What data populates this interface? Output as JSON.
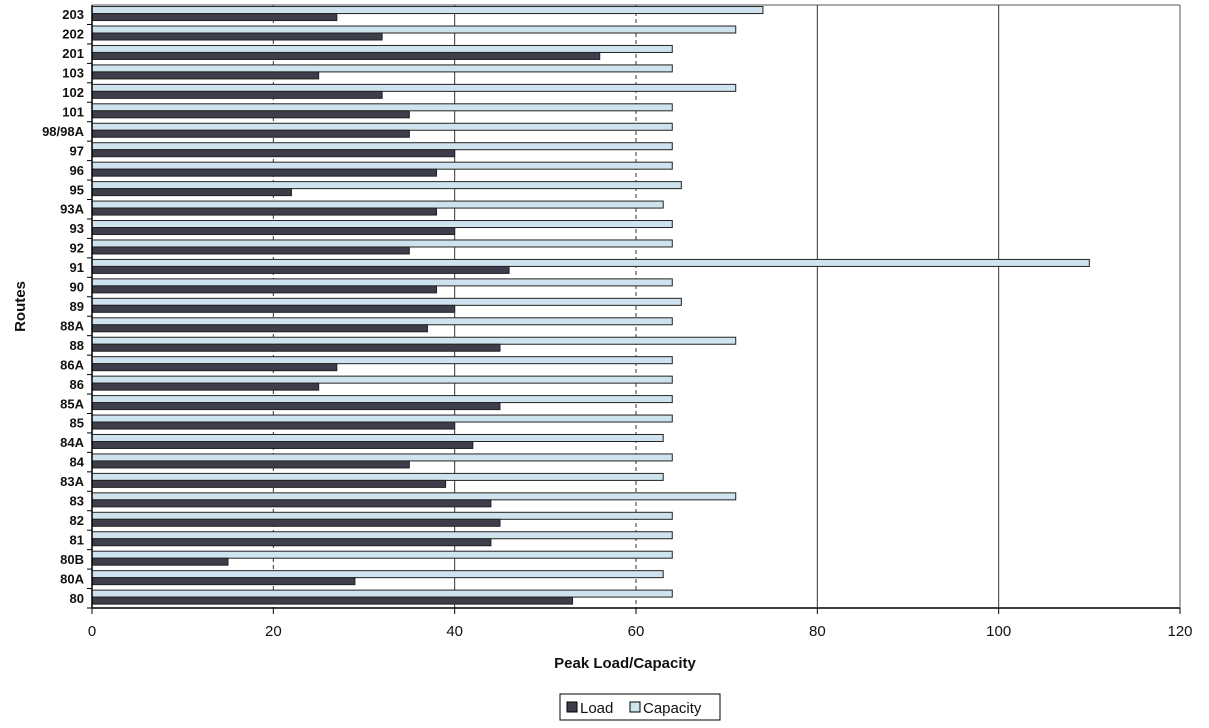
{
  "chart_data": {
    "type": "bar",
    "orientation": "horizontal",
    "title": "",
    "xlabel": "Peak Load/Capacity",
    "ylabel": "Routes",
    "xlim": [
      0,
      120
    ],
    "x_ticks": [
      0,
      20,
      40,
      60,
      80,
      100,
      120
    ],
    "grid": "vertical gridlines",
    "legend": "bottom-center",
    "categories": [
      "203",
      "202",
      "201",
      "103",
      "102",
      "101",
      "98/98A",
      "97",
      "96",
      "95",
      "93A",
      "93",
      "92",
      "91",
      "90",
      "89",
      "88A",
      "88",
      "86A",
      "86",
      "85A",
      "85",
      "84A",
      "84",
      "83A",
      "83",
      "82",
      "81",
      "80B",
      "80A",
      "80"
    ],
    "series": [
      {
        "name": "Load",
        "color": "#3d3d4c",
        "values": [
          27,
          32,
          56,
          25,
          32,
          35,
          35,
          40,
          38,
          22,
          38,
          40,
          35,
          46,
          38,
          40,
          37,
          45,
          27,
          25,
          45,
          40,
          42,
          35,
          39,
          44,
          45,
          44,
          15,
          29,
          53
        ]
      },
      {
        "name": "Capacity",
        "color": "#cfe3ef",
        "values": [
          74,
          71,
          64,
          64,
          71,
          64,
          64,
          64,
          64,
          65,
          63,
          64,
          64,
          110,
          64,
          65,
          64,
          71,
          64,
          64,
          64,
          64,
          63,
          64,
          63,
          71,
          64,
          64,
          64,
          63,
          64
        ]
      }
    ]
  }
}
